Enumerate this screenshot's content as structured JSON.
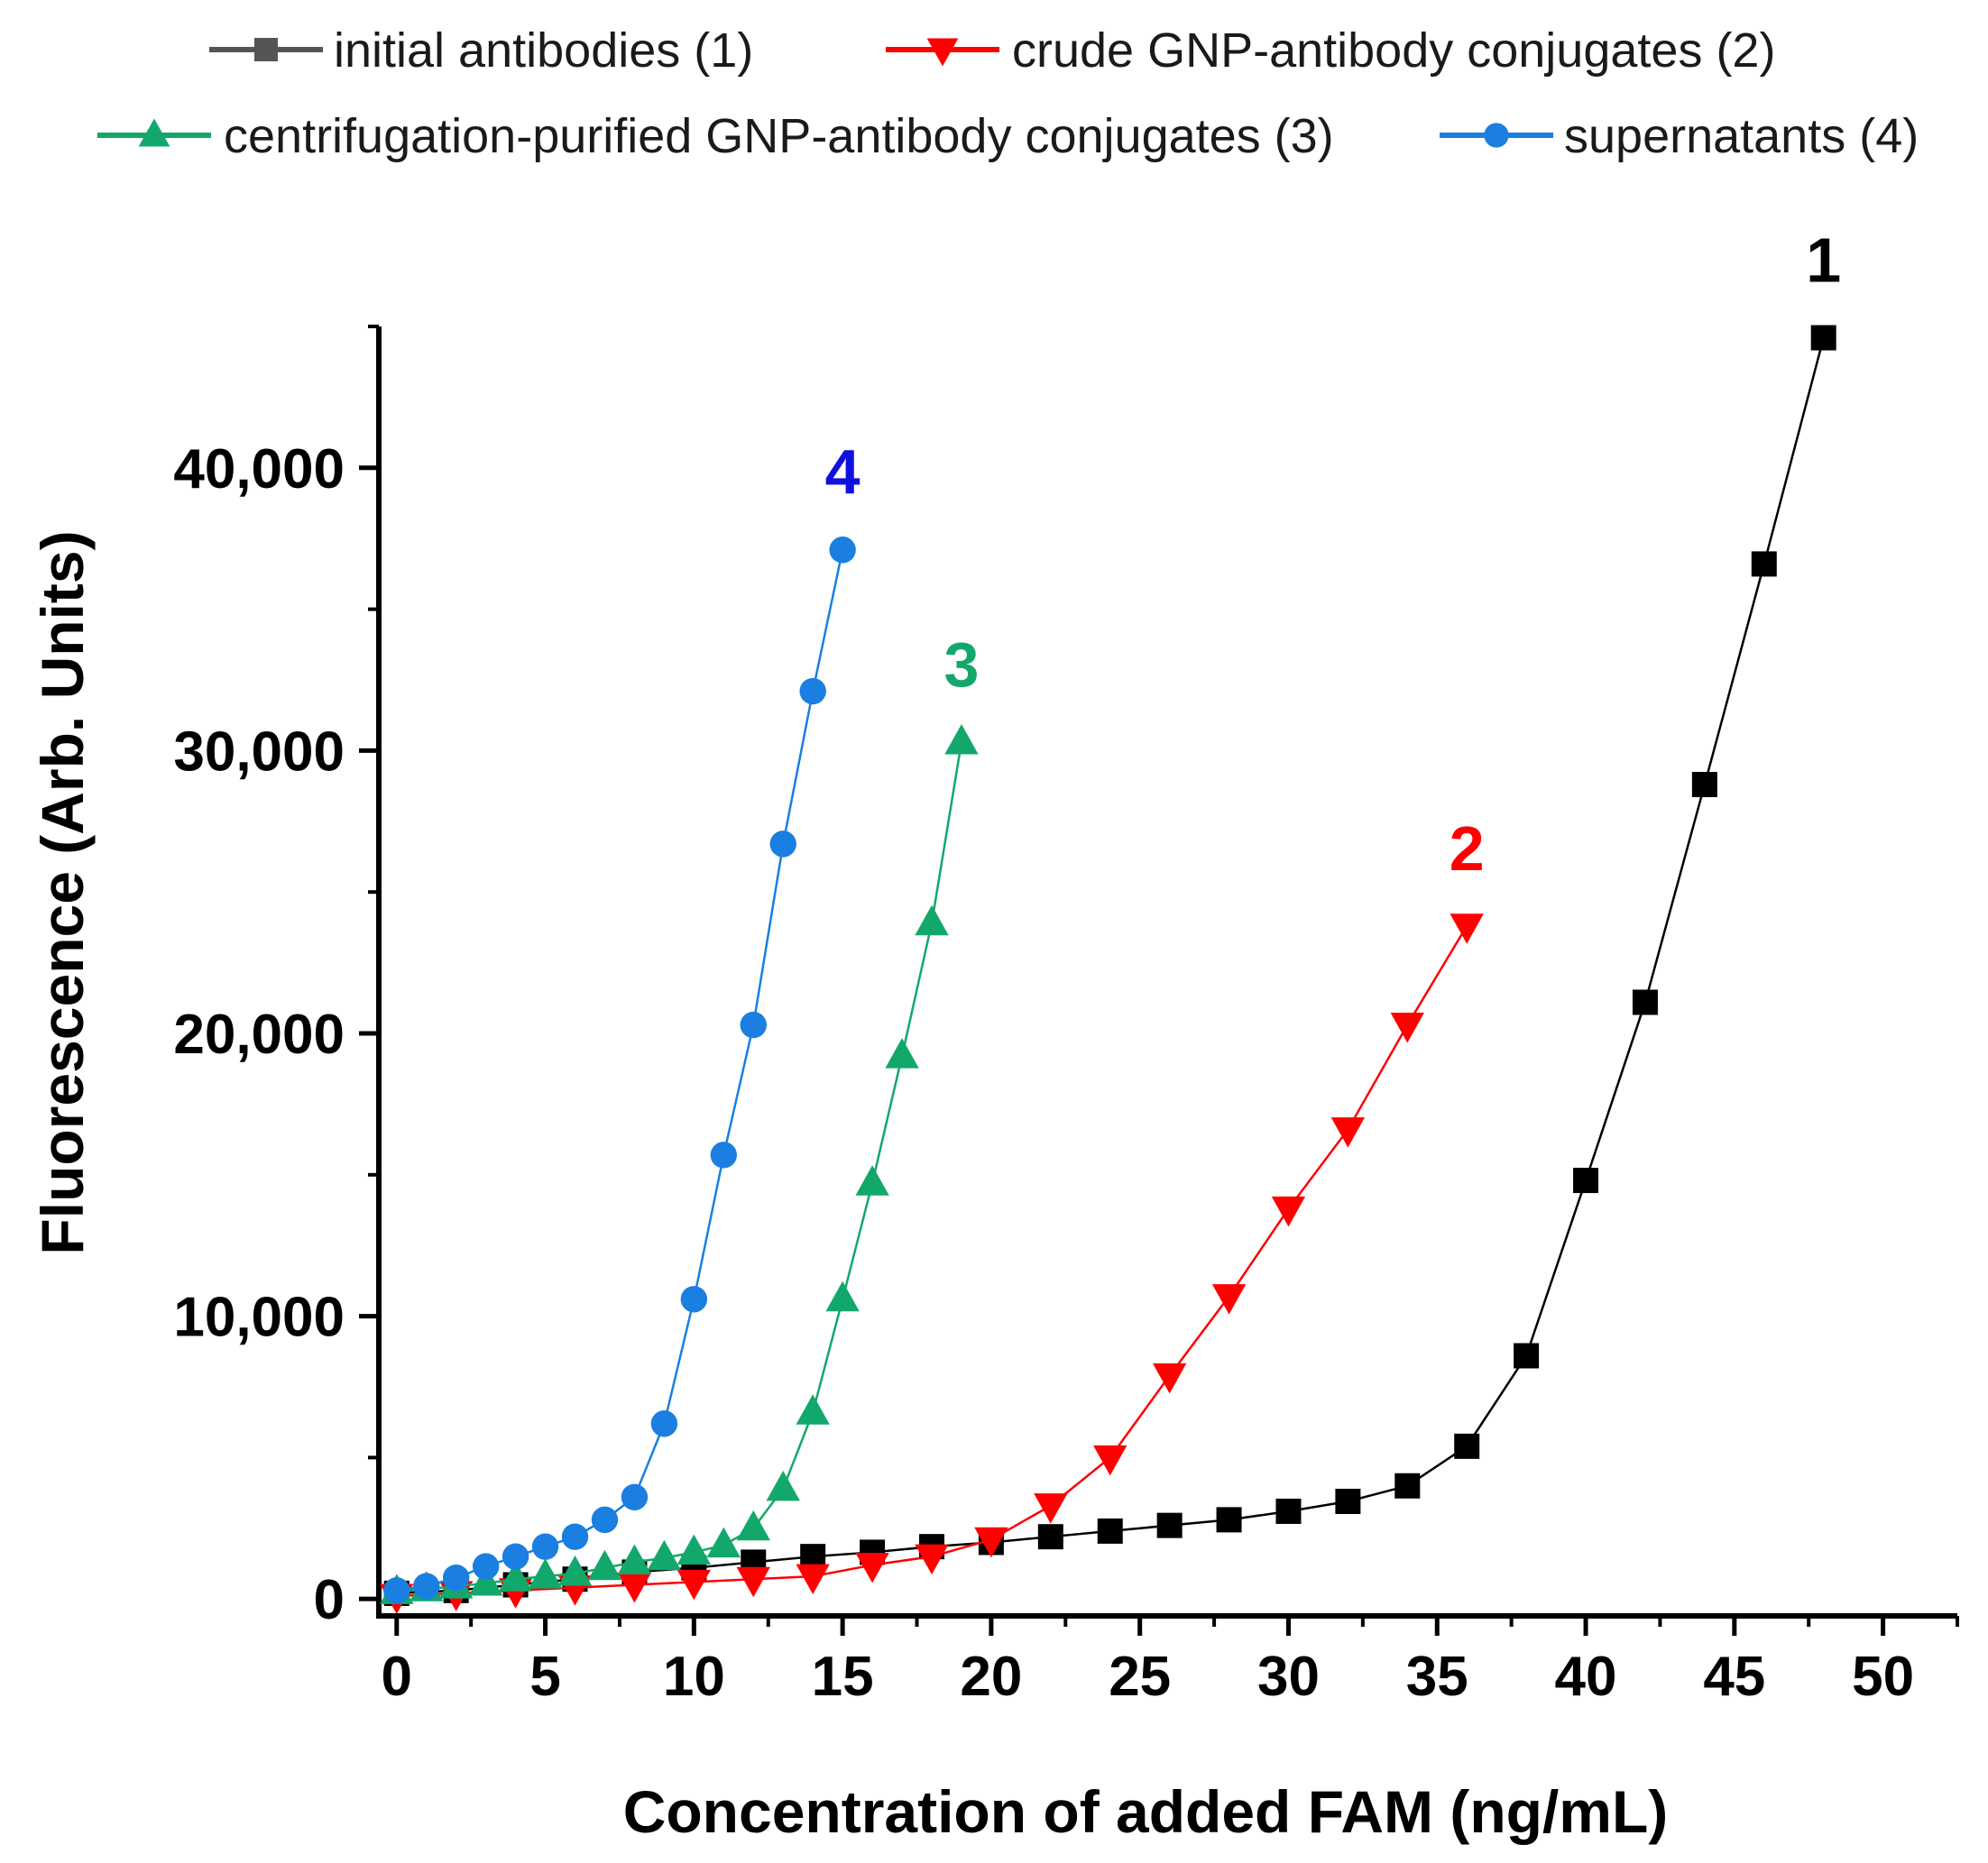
{
  "chart_data": {
    "type": "line",
    "title": "",
    "xlabel": "Concentration of added FAM (ng/mL)",
    "ylabel": "Fluorescence (Arb. Units)",
    "xlim": [
      -0.6,
      52.5
    ],
    "ylim": [
      -600,
      45000
    ],
    "xticks": [
      0,
      5,
      10,
      15,
      20,
      25,
      30,
      35,
      40,
      45,
      50
    ],
    "xtick_labels": [
      "0",
      "5",
      "10",
      "15",
      "20",
      "25",
      "30",
      "35",
      "40",
      "45",
      "50"
    ],
    "yticks": [
      0,
      10000,
      20000,
      30000,
      40000
    ],
    "ytick_labels": [
      "0",
      "10,000",
      "20,000",
      "30,000",
      "40,000"
    ],
    "legend_position": "top",
    "series": [
      {
        "name": "initial antibodies (1)",
        "label": "1",
        "color": "#000000",
        "legend_color": "#555555",
        "marker": "square",
        "x": [
          0,
          2,
          4,
          6,
          8,
          10,
          12,
          14,
          16,
          18,
          20,
          22,
          24,
          26,
          28,
          30,
          32,
          34,
          36,
          38,
          40,
          42,
          44,
          46,
          48
        ],
        "y": [
          200,
          300,
          500,
          700,
          950,
          1100,
          1300,
          1500,
          1650,
          1850,
          2000,
          2200,
          2400,
          2600,
          2800,
          3100,
          3450,
          4000,
          5400,
          8600,
          14800,
          21100,
          28800,
          36600,
          44600
        ]
      },
      {
        "name": "crude GNP-antibody conjugates (2)",
        "label": "2",
        "color": "#ff0000",
        "legend_color": "#ff0000",
        "marker": "triangle-down",
        "x": [
          0,
          2,
          4,
          6,
          8,
          10,
          12,
          14,
          16,
          18,
          20,
          22,
          24,
          26,
          28,
          30,
          32,
          34,
          36
        ],
        "y": [
          100,
          200,
          300,
          400,
          500,
          600,
          700,
          800,
          1200,
          1500,
          2100,
          3300,
          5000,
          7900,
          10700,
          13800,
          16600,
          20300,
          23800
        ]
      },
      {
        "name": "centrifugation-purified GNP-antibody conjugates (3)",
        "label": "3",
        "color": "#13a86b",
        "legend_color": "#13a86b",
        "marker": "triangle-up",
        "x": [
          0,
          1,
          2,
          3,
          4,
          5,
          6,
          7,
          8,
          9,
          10,
          11,
          12,
          13,
          14,
          15,
          16,
          17,
          18,
          19
        ],
        "y": [
          250,
          350,
          450,
          550,
          700,
          800,
          900,
          1100,
          1300,
          1450,
          1650,
          1900,
          2500,
          3900,
          6600,
          10600,
          14700,
          19200,
          23900,
          30300
        ]
      },
      {
        "name": "supernatants (4)",
        "label": "4",
        "color": "#1a7fe0",
        "legend_color": "#1a7fe0",
        "marker": "circle",
        "x": [
          0,
          1,
          2,
          3,
          4,
          5,
          6,
          7,
          8,
          9,
          10,
          11,
          12,
          13,
          14,
          15
        ],
        "y": [
          300,
          450,
          750,
          1150,
          1500,
          1850,
          2200,
          2800,
          3600,
          6200,
          10600,
          15700,
          20300,
          26700,
          32100,
          37100
        ]
      }
    ]
  }
}
